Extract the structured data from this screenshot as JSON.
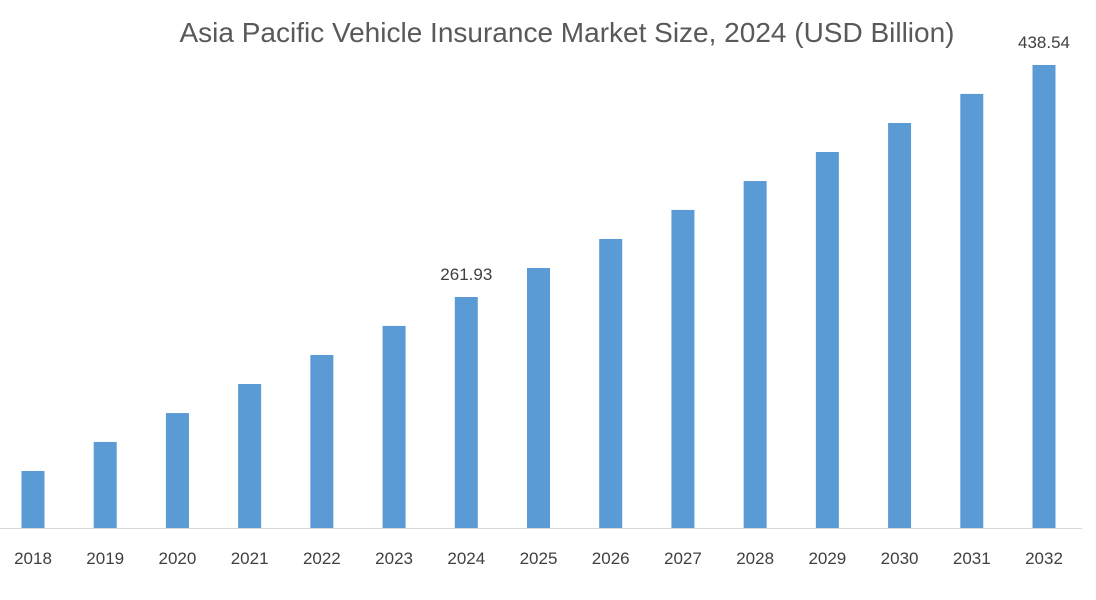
{
  "chart_data": {
    "type": "bar",
    "title": "Asia Pacific Vehicle Insurance Market Size, 2024 (USD Billion)",
    "xlabel": "",
    "ylabel": "",
    "categories": [
      "2018",
      "2019",
      "2020",
      "2021",
      "2022",
      "2023",
      "2024",
      "2025",
      "2026",
      "2027",
      "2028",
      "2029",
      "2030",
      "2031",
      "2032"
    ],
    "values": [
      129.5,
      151.6,
      173.6,
      195.7,
      217.8,
      239.9,
      261.93,
      284.0,
      306.1,
      328.2,
      350.2,
      372.3,
      394.4,
      416.5,
      438.54
    ],
    "data_labels": {
      "2024": "261.93",
      "2032": "438.54"
    },
    "ylim": [
      86.1,
      488
    ],
    "grid": false,
    "legend": "none",
    "bar_color": "#5B9BD5",
    "axis_color": "#D9D9D9"
  }
}
